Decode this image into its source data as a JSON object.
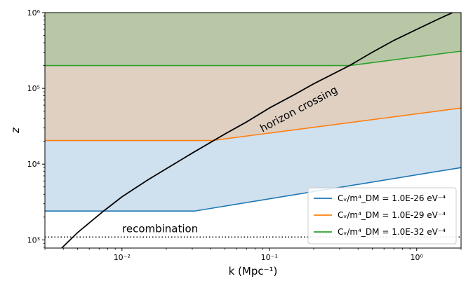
{
  "chart_data": {
    "type": "line",
    "title": "",
    "xlabel": "k (Mpc⁻¹)",
    "ylabel": "z",
    "xscale": "log",
    "yscale": "log",
    "xlim": [
      0.003,
      2.0
    ],
    "ylim": [
      780,
      1000000
    ],
    "x_ticks": [
      {
        "value": 0.01,
        "label": "10⁻²"
      },
      {
        "value": 0.1,
        "label": "10⁻¹"
      },
      {
        "value": 1,
        "label": "10⁰"
      }
    ],
    "y_ticks": [
      {
        "value": 1000,
        "label": "10³"
      },
      {
        "value": 10000,
        "label": "10⁴"
      },
      {
        "value": 100000,
        "label": "10⁵"
      },
      {
        "value": 1000000,
        "label": "10⁶"
      }
    ],
    "series": [
      {
        "name": "C_V/m⁴_DM = 1.0E-26 eV⁻⁴",
        "legend_label": "Cᵥ/m⁴_DM = 1.0E-26 eV⁻⁴",
        "color": "#1f77b4",
        "fill": "#cfe0ef",
        "x": [
          0.003,
          0.031,
          2.0
        ],
        "y": [
          2400,
          2400,
          9000
        ]
      },
      {
        "name": "C_V/m⁴_DM = 1.0E-29 eV⁻⁴",
        "legend_label": "Cᵥ/m⁴_DM = 1.0E-29 eV⁻⁴",
        "color": "#ff7f0e",
        "fill": "#dfd0c2",
        "x": [
          0.003,
          0.041,
          2.0
        ],
        "y": [
          20500,
          20500,
          55000
        ]
      },
      {
        "name": "C_V/m⁴_DM = 1.0E-32 eV⁻⁴",
        "legend_label": "Cᵥ/m⁴_DM = 1.0E-32 eV⁻⁴",
        "color": "#2ca02c",
        "fill": "#b8c8a6",
        "x": [
          0.003,
          0.35,
          2.0
        ],
        "y": [
          200000,
          200000,
          310000
        ]
      }
    ],
    "horizon_crossing": {
      "label": "horizon crossing",
      "color": "#000000",
      "x": [
        0.0039,
        0.005,
        0.0075,
        0.01,
        0.015,
        0.02,
        0.03,
        0.05,
        0.07,
        0.1,
        0.15,
        0.2,
        0.35,
        0.5,
        0.7,
        1.0,
        1.4,
        1.75
      ],
      "y": [
        780,
        1250,
        2400,
        3700,
        6200,
        8700,
        14000,
        25000,
        36000,
        55000,
        84000,
        115000,
        200000,
        300000,
        430000,
        600000,
        820000,
        1000000
      ]
    },
    "recombination": {
      "label": "recombination",
      "z": 1090,
      "style": "dotted",
      "color": "#000000"
    },
    "legend": {
      "location": "lower-right"
    }
  }
}
